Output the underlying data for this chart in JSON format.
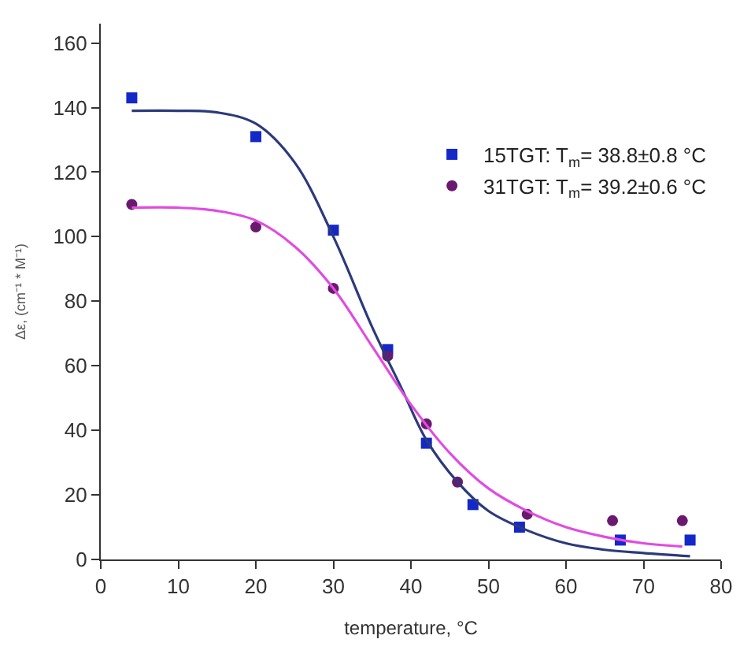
{
  "chart_data": {
    "type": "scatter",
    "xlabel": "temperature, °C",
    "ylabel": "Δε, (cm⁻¹ * M⁻¹)",
    "xlim": [
      0,
      80
    ],
    "xticks": [
      0,
      10,
      20,
      30,
      40,
      50,
      60,
      70,
      80
    ],
    "ylim": [
      0,
      166
    ],
    "yticks": [
      0,
      20,
      40,
      60,
      80,
      100,
      120,
      140,
      160
    ],
    "legend": "top right",
    "series": [
      {
        "name": "15TGT: T$_{m}$= 38.8±0.8 °C",
        "color": "#1428c8",
        "marker": "square",
        "x": [
          4,
          20,
          30,
          37,
          42,
          48,
          54,
          67,
          76
        ],
        "values": [
          143,
          131,
          102,
          65,
          36,
          17,
          10,
          6,
          6
        ]
      },
      {
        "name": "31TGT: T$_{m}$= 39.2±0.6 °C",
        "color": "#6a1a6e",
        "marker": "circle",
        "x": [
          4,
          20,
          30,
          37,
          42,
          46,
          55,
          66,
          75
        ],
        "values": [
          110,
          103,
          84,
          63,
          42,
          24,
          14,
          12,
          12
        ]
      },
      {
        "type": "line",
        "color": "#2c3a7c",
        "marker": "none",
        "x": [
          4,
          10,
          15,
          20,
          25,
          30,
          35,
          38.8,
          42,
          46,
          50,
          55,
          60,
          65,
          70,
          76
        ],
        "values": [
          139,
          139,
          138.5,
          135,
          123,
          100,
          72,
          53,
          37,
          24,
          15,
          9,
          5,
          3,
          2,
          1
        ]
      },
      {
        "type": "line",
        "color": "#e04ce0",
        "marker": "none",
        "x": [
          4,
          10,
          15,
          20,
          25,
          30,
          35,
          40,
          45,
          50,
          55,
          60,
          65,
          70,
          75
        ],
        "values": [
          109,
          109,
          108,
          105,
          97,
          84,
          66,
          48,
          33,
          22,
          15,
          10,
          7,
          5,
          4
        ]
      }
    ]
  }
}
